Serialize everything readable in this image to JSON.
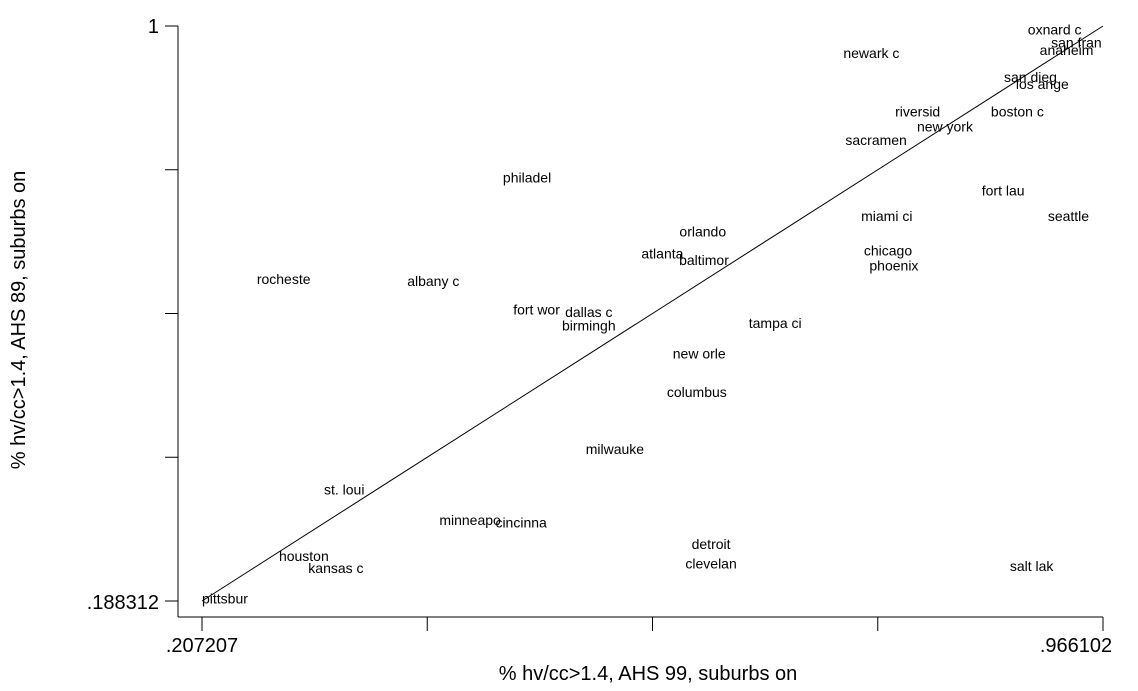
{
  "chart_data": {
    "type": "scatter",
    "title": "",
    "xlabel": "% hv/cc>1.4, AHS 99, suburbs on",
    "ylabel": "% hv/cc>1.4, AHS 89, suburbs on",
    "xlim": [
      0.207207,
      0.966102
    ],
    "ylim": [
      0.188312,
      1
    ],
    "x_tick_labels": [
      ".207207",
      ".966102"
    ],
    "y_tick_labels": [
      ".188312",
      "1"
    ],
    "x_ticks": [
      0.207207,
      0.396931,
      0.586655,
      0.776378,
      0.966102
    ],
    "y_ticks": [
      0.188312,
      0.391234,
      0.594156,
      0.797078,
      1
    ],
    "reference_line": [
      [
        0.207207,
        0.188312
      ],
      [
        0.966102,
        1
      ]
    ],
    "points": [
      {
        "label": "oxnard c",
        "x": 0.948,
        "y": 0.995
      },
      {
        "label": "san fran",
        "x": 0.965,
        "y": 0.977
      },
      {
        "label": "anaheim",
        "x": 0.958,
        "y": 0.966
      },
      {
        "label": "newark c",
        "x": 0.771,
        "y": 0.962
      },
      {
        "label": "san dieg",
        "x": 0.905,
        "y": 0.928
      },
      {
        "label": "los ange",
        "x": 0.915,
        "y": 0.918
      },
      {
        "label": "riversid",
        "x": 0.81,
        "y": 0.879
      },
      {
        "label": "boston c",
        "x": 0.894,
        "y": 0.879
      },
      {
        "label": "new york",
        "x": 0.833,
        "y": 0.858
      },
      {
        "label": "sacramen",
        "x": 0.775,
        "y": 0.839
      },
      {
        "label": "philadel",
        "x": 0.481,
        "y": 0.786
      },
      {
        "label": "fort lau",
        "x": 0.882,
        "y": 0.768
      },
      {
        "label": "miami ci",
        "x": 0.784,
        "y": 0.732
      },
      {
        "label": "seattle",
        "x": 0.937,
        "y": 0.732
      },
      {
        "label": "orlando",
        "x": 0.629,
        "y": 0.71
      },
      {
        "label": "chicago",
        "x": 0.785,
        "y": 0.683
      },
      {
        "label": "atlanta",
        "x": 0.595,
        "y": 0.679
      },
      {
        "label": "baltimor",
        "x": 0.63,
        "y": 0.67
      },
      {
        "label": "phoenix",
        "x": 0.79,
        "y": 0.662
      },
      {
        "label": "rocheste",
        "x": 0.276,
        "y": 0.643
      },
      {
        "label": "albany c",
        "x": 0.402,
        "y": 0.64
      },
      {
        "label": "fort wor",
        "x": 0.489,
        "y": 0.6
      },
      {
        "label": "dallas c",
        "x": 0.533,
        "y": 0.596
      },
      {
        "label": "birmingh",
        "x": 0.533,
        "y": 0.577
      },
      {
        "label": "tampa ci",
        "x": 0.69,
        "y": 0.581
      },
      {
        "label": "new orle",
        "x": 0.626,
        "y": 0.538
      },
      {
        "label": "columbus",
        "x": 0.624,
        "y": 0.483
      },
      {
        "label": "milwauke",
        "x": 0.555,
        "y": 0.403
      },
      {
        "label": "st. loui",
        "x": 0.327,
        "y": 0.346
      },
      {
        "label": "minneapo",
        "x": 0.433,
        "y": 0.303
      },
      {
        "label": "cincinna",
        "x": 0.476,
        "y": 0.299
      },
      {
        "label": "detroit",
        "x": 0.636,
        "y": 0.269
      },
      {
        "label": "houston",
        "x": 0.293,
        "y": 0.252
      },
      {
        "label": "clevelan",
        "x": 0.636,
        "y": 0.241
      },
      {
        "label": "kansas c",
        "x": 0.32,
        "y": 0.235
      },
      {
        "label": "salt lak",
        "x": 0.906,
        "y": 0.238
      },
      {
        "label": "pittsbur",
        "x": 0.207207,
        "y": 0.192
      }
    ]
  }
}
